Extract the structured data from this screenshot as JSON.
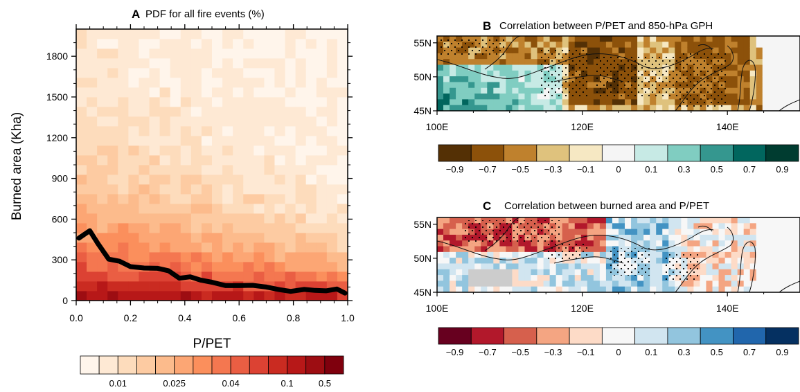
{
  "panel_a": {
    "letter": "A",
    "title": "PDF for all fire events (%)",
    "xlabel": "P/PET",
    "ylabel": "Burned area (Kha)",
    "xticks": [
      "0.0",
      "0.2",
      "0.4",
      "0.6",
      "0.8",
      "1.0"
    ],
    "yticks": [
      "0",
      "300",
      "600",
      "900",
      "1200",
      "1500",
      "1800"
    ],
    "colorbar_labels": [
      "0.01",
      "0.025",
      "0.04",
      "0.1",
      "0.5"
    ],
    "colorbar_colors": [
      "#fff5eb",
      "#fee9d4",
      "#fddcbc",
      "#fdcba2",
      "#fcbb8c",
      "#fca674",
      "#fb8f5c",
      "#f47750",
      "#ea5e43",
      "#dc4233",
      "#ca2b21",
      "#b71818",
      "#9d0d12",
      "#7f000d"
    ]
  },
  "panel_b": {
    "letter": "B",
    "title": "Correlation between P/PET and 850-hPa GPH",
    "lat_labels": [
      "55N",
      "50N",
      "45N"
    ],
    "lon_labels": [
      "100E",
      "120E",
      "140E"
    ],
    "colorbar_labels": [
      "−0.9",
      "−0.7",
      "−0.5",
      "−0.3",
      "−0.1",
      "0",
      "0.1",
      "0.3",
      "0.5",
      "0.7",
      "0.9"
    ],
    "colorbar_colors": [
      "#543005",
      "#8c510a",
      "#bf812d",
      "#dfc27d",
      "#f6e8c3",
      "#f5f5f5",
      "#c7eae5",
      "#80cdc1",
      "#35978f",
      "#01665e",
      "#003c30"
    ]
  },
  "panel_c": {
    "letter": "C",
    "title": "Correlation between burned area and P/PET",
    "lat_labels": [
      "55N",
      "50N",
      "45N"
    ],
    "lon_labels": [
      "100E",
      "120E",
      "140E"
    ],
    "colorbar_labels": [
      "−0.9",
      "−0.7",
      "−0.5",
      "−0.3",
      "−0.1",
      "0",
      "0.1",
      "0.3",
      "0.5",
      "0.7",
      "0.9"
    ],
    "colorbar_colors": [
      "#67001f",
      "#b2182b",
      "#d6604d",
      "#f4a582",
      "#fddbc7",
      "#f7f7f7",
      "#d1e5f0",
      "#92c5de",
      "#4393c3",
      "#2166ac",
      "#053061"
    ]
  },
  "chart_data": [
    {
      "type": "heatmap",
      "title": "PDF for all fire events (%)",
      "xlabel": "P/PET",
      "ylabel": "Burned area (Kha)",
      "xlim": [
        0,
        1.0
      ],
      "ylim": [
        0,
        2000
      ],
      "colorbar_unit": "%",
      "series": [
        {
          "type": "line",
          "x": [
            0.01,
            0.05,
            0.08,
            0.12,
            0.16,
            0.2,
            0.25,
            0.3,
            0.34,
            0.38,
            0.42,
            0.46,
            0.5,
            0.55,
            0.6,
            0.65,
            0.7,
            0.75,
            0.79,
            0.84,
            0.88,
            0.92,
            0.96,
            0.99
          ],
          "values": [
            460,
            515,
            420,
            305,
            290,
            250,
            240,
            238,
            220,
            165,
            175,
            150,
            135,
            110,
            110,
            112,
            100,
            80,
            68,
            82,
            75,
            72,
            85,
            55
          ]
        }
      ]
    },
    {
      "type": "heatmap",
      "title": "Correlation between P/PET and 850-hPa GPH",
      "xlim": [
        100,
        150
      ],
      "ylim": [
        45,
        56
      ],
      "colorbar_range": [
        -0.9,
        0.9
      ]
    },
    {
      "type": "heatmap",
      "title": "Correlation between burned area and P/PET",
      "xlim": [
        100,
        150
      ],
      "ylim": [
        45,
        56
      ],
      "colorbar_range": [
        -0.9,
        0.9
      ]
    }
  ]
}
